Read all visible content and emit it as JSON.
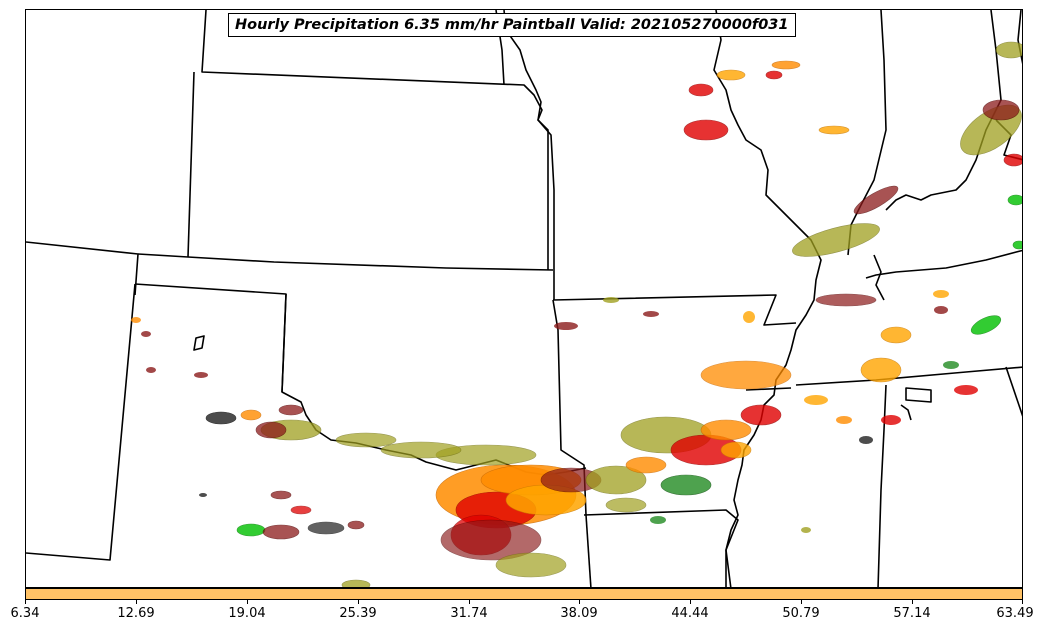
{
  "title": "Hourly Precipitation 6.35 mm/hr Paintball Valid: 202105270000f031",
  "colorbar": {
    "color": "#ffc266",
    "ticks": [
      "6.34",
      "12.69",
      "19.04",
      "25.39",
      "31.74",
      "38.09",
      "44.44",
      "50.79",
      "57.14",
      "63.49"
    ]
  },
  "member_colors": [
    "#8b1a1a",
    "#e00000",
    "#ff8c00",
    "#a0a020",
    "#00c000",
    "#228b22",
    "#202020",
    "#ffa500"
  ],
  "map_layers": [
    "state-borders",
    "paintball-precip-contours"
  ]
}
